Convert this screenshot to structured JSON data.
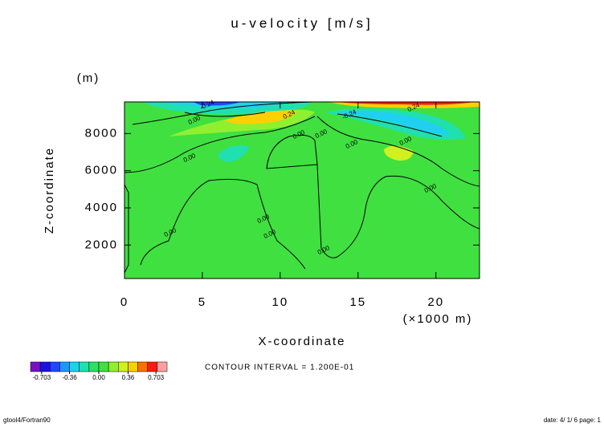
{
  "chart_data": {
    "type": "contour",
    "title": "u-velocity [m/s]",
    "x_label": "X-coordinate",
    "y_label": "Z-coordinate",
    "x_unit": "(×1000 m)",
    "y_unit": "(m)",
    "xlim": [
      0,
      22.8
    ],
    "ylim": [
      200,
      9700
    ],
    "xticks": [
      0,
      5,
      10,
      15,
      20
    ],
    "yticks": [
      2000,
      4000,
      6000,
      8000
    ],
    "contour_labels": [
      "0.00",
      "0.00",
      "0.00",
      "0.00",
      "0.00",
      "0.00",
      "0.00",
      "0.00",
      "0.00",
      "0.24",
      "0.24",
      "-0.24",
      "-0.24",
      "0.00",
      "0.00"
    ],
    "contour_interval": "CONTOUR INTERVAL = 1.200E-01",
    "colorbar": {
      "clim": [
        -0.84,
        0.84
      ],
      "colors": [
        "#7a10c0",
        "#1a10e0",
        "#1e46ff",
        "#1e96ff",
        "#20d0f0",
        "#20e0b0",
        "#30e060",
        "#40e040",
        "#90f030",
        "#d0f020",
        "#ffd000",
        "#ff7000",
        "#ff1a10",
        "#ffa0a0"
      ],
      "ticks": [
        {
          "value": -0.703,
          "label": "-0.703"
        },
        {
          "value": -0.36,
          "label": "-0.36"
        },
        {
          "value": 0,
          "label": "0.00"
        },
        {
          "value": 0.36,
          "label": "0.36"
        },
        {
          "value": 0.703,
          "label": "0.703"
        }
      ]
    },
    "footer_left": "gtool4/Fortran90",
    "footer_right": "date: 4/ 1/ 6 page: 1"
  }
}
